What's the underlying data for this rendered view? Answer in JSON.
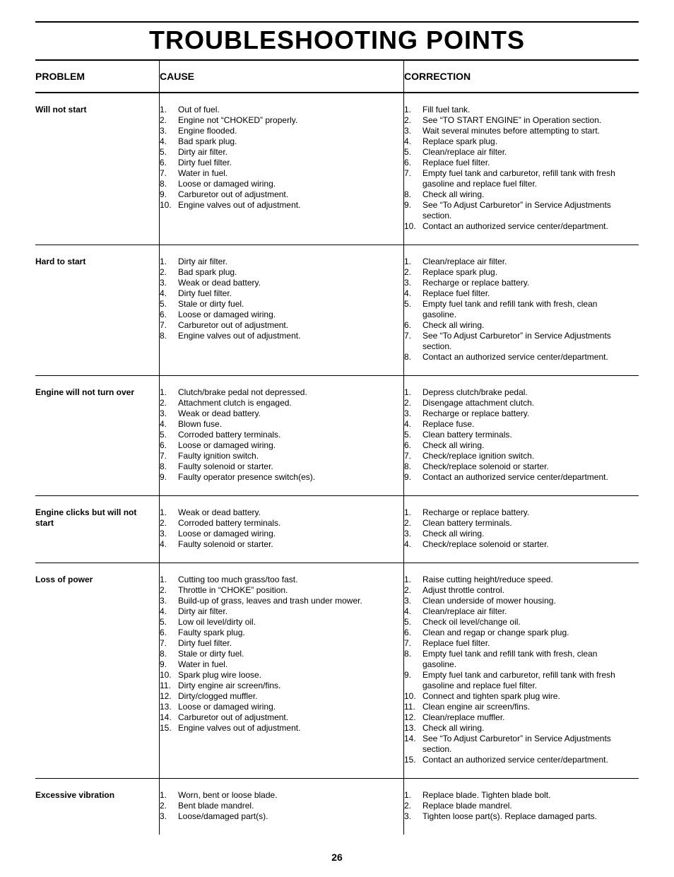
{
  "title": "TROUBLESHOOTING POINTS",
  "page_number": "26",
  "headers": {
    "problem": "PROBLEM",
    "cause": "CAUSE",
    "correction": "CORRECTION"
  },
  "rows": [
    {
      "problem": "Will not start",
      "causes": [
        "Out of fuel.",
        "Engine not “CHOKED” properly.",
        "Engine flooded.",
        "Bad spark plug.",
        "Dirty air filter.",
        "Dirty fuel filter.",
        "Water in fuel.",
        "Loose or damaged wiring.",
        "Carburetor out of adjustment.",
        "Engine valves out of adjustment."
      ],
      "corrections": [
        "Fill fuel tank.",
        "See “TO START ENGINE” in Operation section.",
        "Wait several minutes before attempting to start.",
        "Replace spark plug.",
        "Clean/replace air filter.",
        "Replace fuel filter.",
        "Empty fuel tank and carburetor, refill tank with fresh gasoline and replace fuel filter.",
        "Check all wiring.",
        "See “To Adjust Carburetor” in Service Adjustments section.",
        "Contact an authorized service center/department."
      ]
    },
    {
      "problem": "Hard to start",
      "causes": [
        "Dirty air filter.",
        "Bad spark plug.",
        "Weak or dead battery.",
        "Dirty fuel filter.",
        "Stale or dirty fuel.",
        "Loose or damaged wiring.",
        "Carburetor out of adjustment.",
        "Engine valves out of adjustment."
      ],
      "corrections": [
        "Clean/replace air filter.",
        "Replace spark plug.",
        "Recharge or replace battery.",
        "Replace fuel filter.",
        "Empty fuel tank and refill tank with fresh, clean gasoline.",
        "Check all wiring.",
        "See “To Adjust Carburetor” in Service Adjustments section.",
        "Contact an authorized service center/department."
      ]
    },
    {
      "problem": "Engine will not turn over",
      "causes": [
        "Clutch/brake pedal not depressed.",
        "Attachment clutch is engaged.",
        "Weak or dead battery.",
        "Blown fuse.",
        "Corroded battery terminals.",
        "Loose or damaged wiring.",
        "Faulty ignition switch.",
        "Faulty solenoid or starter.",
        "Faulty operator presence switch(es)."
      ],
      "corrections": [
        "Depress clutch/brake pedal.",
        "Disengage attachment clutch.",
        "Recharge or replace battery.",
        "Replace fuse.",
        "Clean battery terminals.",
        "Check all wiring.",
        "Check/replace ignition switch.",
        "Check/replace solenoid or starter.",
        "Contact an authorized service center/department."
      ]
    },
    {
      "problem": "Engine clicks but will not start",
      "causes": [
        "Weak or dead battery.",
        "Corroded battery terminals.",
        "Loose or damaged wiring.",
        "Faulty solenoid or starter."
      ],
      "corrections": [
        "Recharge or replace battery.",
        "Clean battery terminals.",
        "Check all wiring.",
        "Check/replace solenoid or starter."
      ]
    },
    {
      "problem": "Loss of power",
      "causes": [
        "Cutting too much grass/too fast.",
        "Throttle in “CHOKE” position.",
        "Build-up of grass, leaves and trash under mower.",
        "Dirty air filter.",
        "Low oil level/dirty oil.",
        "Faulty spark plug.",
        "Dirty fuel filter.",
        "Stale or dirty fuel.",
        "Water in fuel.",
        "Spark plug wire loose.",
        "Dirty engine air screen/fins.",
        "Dirty/clogged muffler.",
        "Loose or damaged wiring.",
        "Carburetor out of adjustment.",
        "Engine valves out of adjustment."
      ],
      "corrections": [
        "Raise cutting height/reduce speed.",
        "Adjust throttle control.",
        "Clean underside of mower housing.",
        "Clean/replace air filter.",
        "Check oil level/change oil.",
        "Clean and regap or change spark plug.",
        "Replace fuel filter.",
        "Empty fuel tank and refill tank with fresh, clean gasoline.",
        "Empty fuel tank and carburetor, refill tank with fresh gasoline and replace fuel filter.",
        "Connect and tighten spark plug wire.",
        "Clean engine air screen/fins.",
        "Clean/replace muffler.",
        "Check all wiring.",
        "See “To Adjust Carburetor” in Service Adjustments section.",
        "Contact an authorized service center/department."
      ]
    },
    {
      "problem": "Excessive vibration",
      "causes": [
        "Worn, bent or loose blade.",
        "Bent blade mandrel.",
        "Loose/damaged part(s)."
      ],
      "corrections": [
        "Replace blade.  Tighten blade bolt.",
        "Replace blade mandrel.",
        "Tighten loose part(s).  Replace damaged parts."
      ]
    }
  ]
}
